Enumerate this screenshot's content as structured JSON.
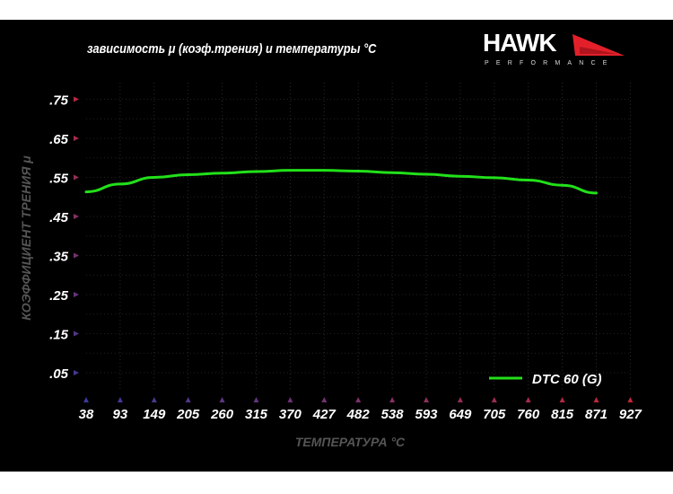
{
  "header": {
    "title": "зависимость μ (коэф.трения) и температуры °C"
  },
  "logo": {
    "word": "HAWK",
    "sub": "PERFORMANCE"
  },
  "chart_data": {
    "type": "line",
    "title": "зависимость μ (коэф.трения) и температуры °C",
    "xlabel": "ТЕМПЕРАТУРА °C",
    "ylabel": "КОЭФФИЦИЕНТ ТРЕНИЯ μ",
    "x_ticks": [
      "38",
      "93",
      "149",
      "205",
      "260",
      "315",
      "370",
      "427",
      "482",
      "538",
      "593",
      "649",
      "705",
      "760",
      "815",
      "871",
      "927"
    ],
    "y_ticks": [
      ".75",
      ".65",
      ".55",
      ".45",
      ".35",
      ".25",
      ".15",
      ".05"
    ],
    "y_tick_values": [
      0.75,
      0.65,
      0.55,
      0.45,
      0.35,
      0.25,
      0.15,
      0.05
    ],
    "ylim": [
      0.05,
      0.75
    ],
    "grid": true,
    "legend": "bottom-right",
    "series": [
      {
        "name": "DTC 60 (G)",
        "color": "#22e01a",
        "x": [
          38,
          93,
          149,
          205,
          260,
          315,
          370,
          427,
          482,
          538,
          593,
          649,
          705,
          760,
          815,
          871
        ],
        "values": [
          0.513,
          0.533,
          0.55,
          0.557,
          0.561,
          0.565,
          0.568,
          0.568,
          0.566,
          0.562,
          0.558,
          0.553,
          0.549,
          0.543,
          0.53,
          0.51
        ]
      }
    ]
  }
}
